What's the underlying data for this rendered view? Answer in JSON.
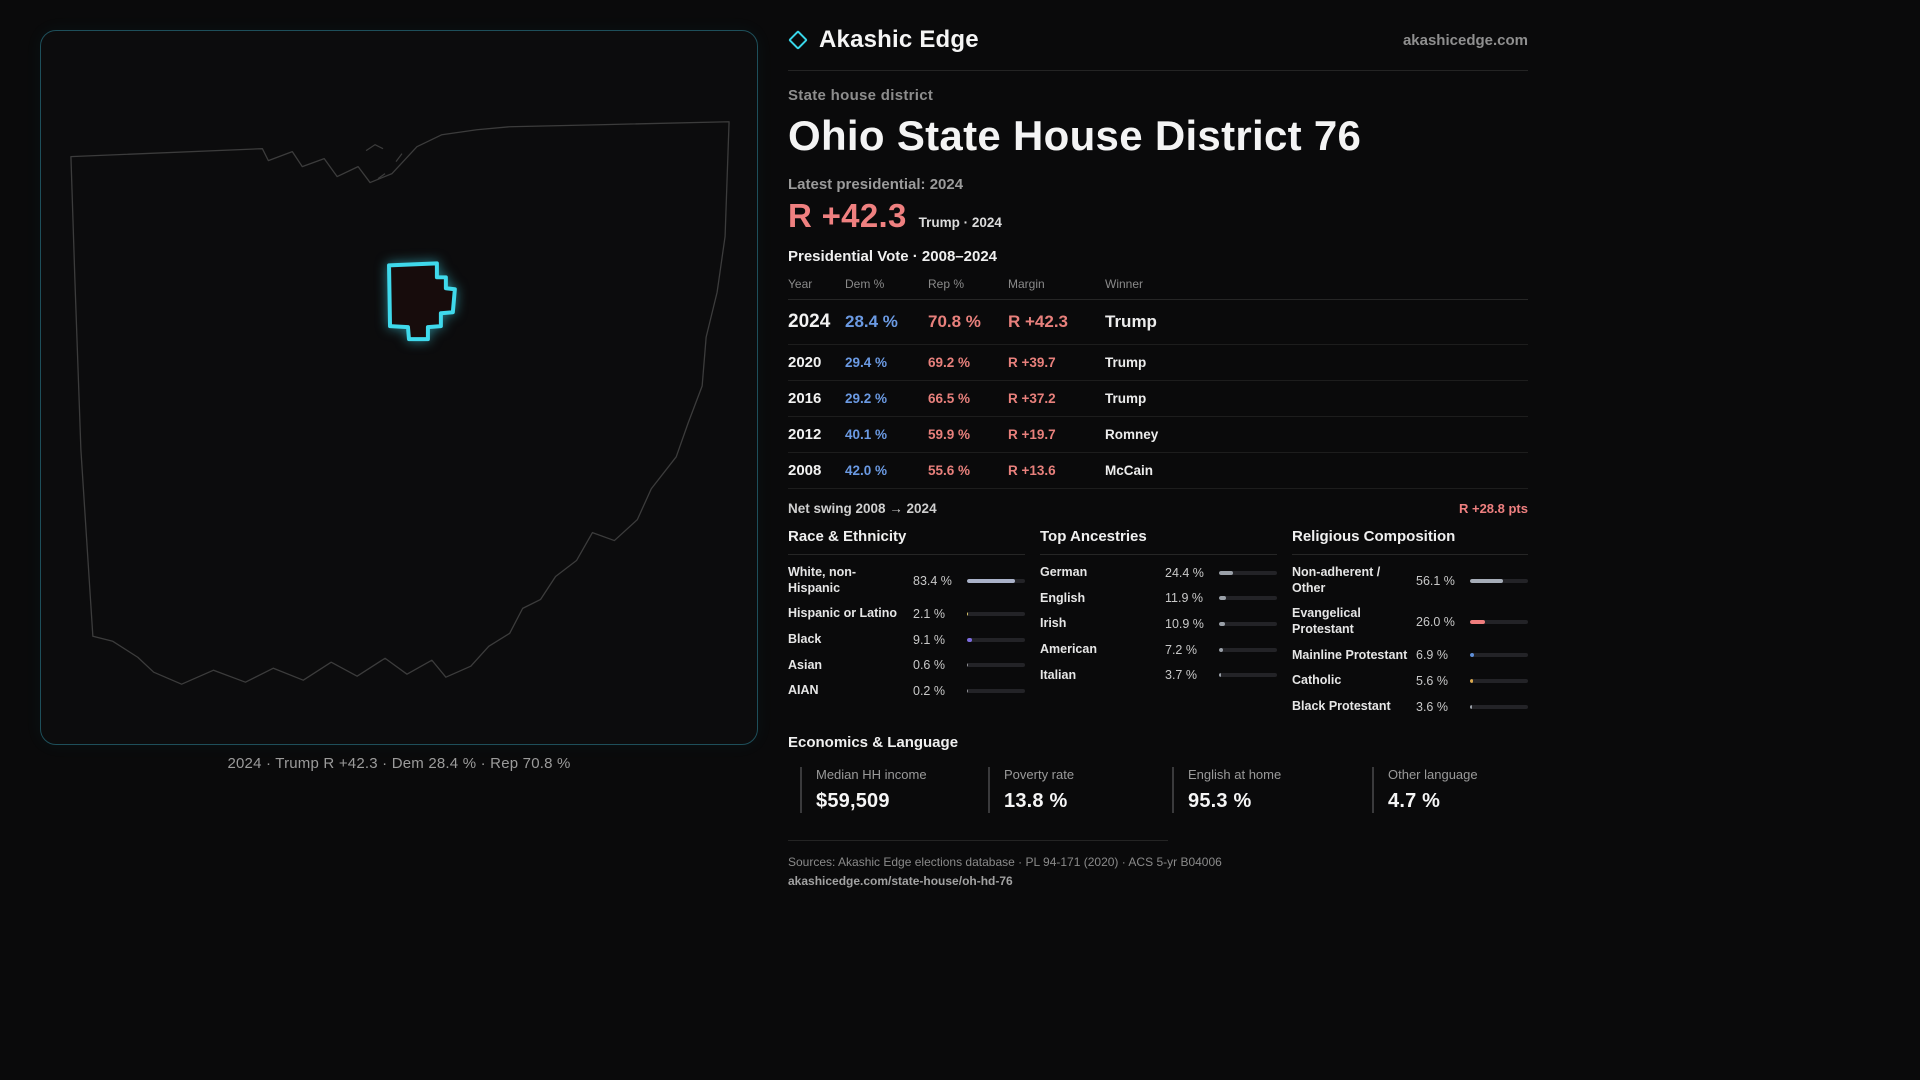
{
  "colors": {
    "accent_cyan": "#38d6e9",
    "rep_red": "#e8807c",
    "dem_blue": "#6b9ae3",
    "margin_red": "#ef8080",
    "background": "#0a0a0b",
    "panel_border": "#1e4f5a"
  },
  "header": {
    "brand": "Akashic Edge",
    "site": "akashicedge.com"
  },
  "hero": {
    "eyebrow": "State house district",
    "title": "Ohio State House District 76",
    "latest_label": "Latest presidential: 2024",
    "margin_big": "R +42.3",
    "margin_context": "Trump · 2024"
  },
  "map": {
    "caption": "2024 · Trump R +42.3 · Dem 28.4 % · Rep 70.8 %"
  },
  "table": {
    "title": "Presidential Vote · 2008–2024",
    "headers": {
      "year": "Year",
      "dem": "Dem %",
      "rep": "Rep %",
      "margin": "Margin",
      "winner": "Winner"
    },
    "rows": [
      {
        "year": "2024",
        "dem": "28.4 %",
        "rep": "70.8 %",
        "margin": "R +42.3",
        "winner": "Trump"
      },
      {
        "year": "2020",
        "dem": "29.4 %",
        "rep": "69.2 %",
        "margin": "R +39.7",
        "winner": "Trump"
      },
      {
        "year": "2016",
        "dem": "29.2 %",
        "rep": "66.5 %",
        "margin": "R +37.2",
        "winner": "Trump"
      },
      {
        "year": "2012",
        "dem": "40.1 %",
        "rep": "59.9 %",
        "margin": "R +19.7",
        "winner": "Romney"
      },
      {
        "year": "2008",
        "dem": "42.0 %",
        "rep": "55.6 %",
        "margin": "R +13.6",
        "winner": "McCain"
      }
    ]
  },
  "swing": {
    "label": "Net swing 2008 → 2024",
    "value": "R +28.8 pts"
  },
  "demographics": {
    "race": {
      "title": "Race & Ethnicity",
      "items": [
        {
          "label": "White, non-Hispanic",
          "value_text": "83.4 %",
          "value": 83.4,
          "color": "#aab2c9"
        },
        {
          "label": "Hispanic or Latino",
          "value_text": "2.1 %",
          "value": 2.1,
          "color": "#d8c468"
        },
        {
          "label": "Black",
          "value_text": "9.1 %",
          "value": 9.1,
          "color": "#7d6ce0"
        },
        {
          "label": "Asian",
          "value_text": "0.6 %",
          "value": 0.6,
          "color": "#8f8f95"
        },
        {
          "label": "AIAN",
          "value_text": "0.2 %",
          "value": 0.2,
          "color": "#8f8f95"
        }
      ]
    },
    "ancestries": {
      "title": "Top Ancestries",
      "items": [
        {
          "label": "German",
          "value_text": "24.4 %",
          "value": 24.4,
          "color": "#9aa0a8"
        },
        {
          "label": "English",
          "value_text": "11.9 %",
          "value": 11.9,
          "color": "#9aa0a8"
        },
        {
          "label": "Irish",
          "value_text": "10.9 %",
          "value": 10.9,
          "color": "#9aa0a8"
        },
        {
          "label": "American",
          "value_text": "7.2 %",
          "value": 7.2,
          "color": "#9aa0a8"
        },
        {
          "label": "Italian",
          "value_text": "3.7 %",
          "value": 3.7,
          "color": "#9aa0a8"
        }
      ]
    },
    "religion": {
      "title": "Religious Composition",
      "items": [
        {
          "label": "Non-adherent / Other",
          "value_text": "56.1 %",
          "value": 56.1,
          "color": "#a6adb8"
        },
        {
          "label": "Evangelical Protestant",
          "value_text": "26.0 %",
          "value": 26.0,
          "color": "#ef7d7d"
        },
        {
          "label": "Mainline Protestant",
          "value_text": "6.9 %",
          "value": 6.9,
          "color": "#5f8fd9"
        },
        {
          "label": "Catholic",
          "value_text": "5.6 %",
          "value": 5.6,
          "color": "#d9a84e"
        },
        {
          "label": "Black Protestant",
          "value_text": "3.6 %",
          "value": 3.6,
          "color": "#9aa0a8"
        }
      ]
    }
  },
  "economics": {
    "title": "Economics & Language",
    "stats": [
      {
        "label": "Median HH income",
        "value": "$59,509"
      },
      {
        "label": "Poverty rate",
        "value": "13.8 %"
      },
      {
        "label": "English at home",
        "value": "95.3 %"
      },
      {
        "label": "Other language",
        "value": "4.7 %"
      }
    ]
  },
  "footer": {
    "sources": "Sources: Akashic Edge elections database · PL 94-171 (2020) · ACS 5-yr B04006",
    "permalink": "akashicedge.com/state-house/oh-hd-76"
  },
  "chart_data": [
    {
      "type": "table",
      "title": "Presidential Vote · 2008–2024",
      "columns": [
        "Year",
        "Dem %",
        "Rep %",
        "Margin",
        "Winner"
      ],
      "rows": [
        [
          2024,
          28.4,
          70.8,
          "R +42.3",
          "Trump"
        ],
        [
          2020,
          29.4,
          69.2,
          "R +39.7",
          "Trump"
        ],
        [
          2016,
          29.2,
          66.5,
          "R +37.2",
          "Trump"
        ],
        [
          2012,
          40.1,
          59.9,
          "R +19.7",
          "Romney"
        ],
        [
          2008,
          42.0,
          55.6,
          "R +13.6",
          "McCain"
        ]
      ],
      "annotations": {
        "net_swing_2008_to_2024": "R +28.8 pts",
        "latest_margin": "R +42.3 (Trump 2024)"
      }
    },
    {
      "type": "bar",
      "title": "Race & Ethnicity",
      "categories": [
        "White, non-Hispanic",
        "Hispanic or Latino",
        "Black",
        "Asian",
        "AIAN"
      ],
      "values": [
        83.4,
        2.1,
        9.1,
        0.6,
        0.2
      ],
      "unit": "%",
      "xlim": [
        0,
        100
      ],
      "orientation": "horizontal"
    },
    {
      "type": "bar",
      "title": "Top Ancestries",
      "categories": [
        "German",
        "English",
        "Irish",
        "American",
        "Italian"
      ],
      "values": [
        24.4,
        11.9,
        10.9,
        7.2,
        3.7
      ],
      "unit": "%",
      "xlim": [
        0,
        100
      ],
      "orientation": "horizontal"
    },
    {
      "type": "bar",
      "title": "Religious Composition",
      "categories": [
        "Non-adherent / Other",
        "Evangelical Protestant",
        "Mainline Protestant",
        "Catholic",
        "Black Protestant"
      ],
      "values": [
        56.1,
        26.0,
        6.9,
        5.6,
        3.6
      ],
      "unit": "%",
      "xlim": [
        0,
        100
      ],
      "orientation": "horizontal"
    }
  ]
}
